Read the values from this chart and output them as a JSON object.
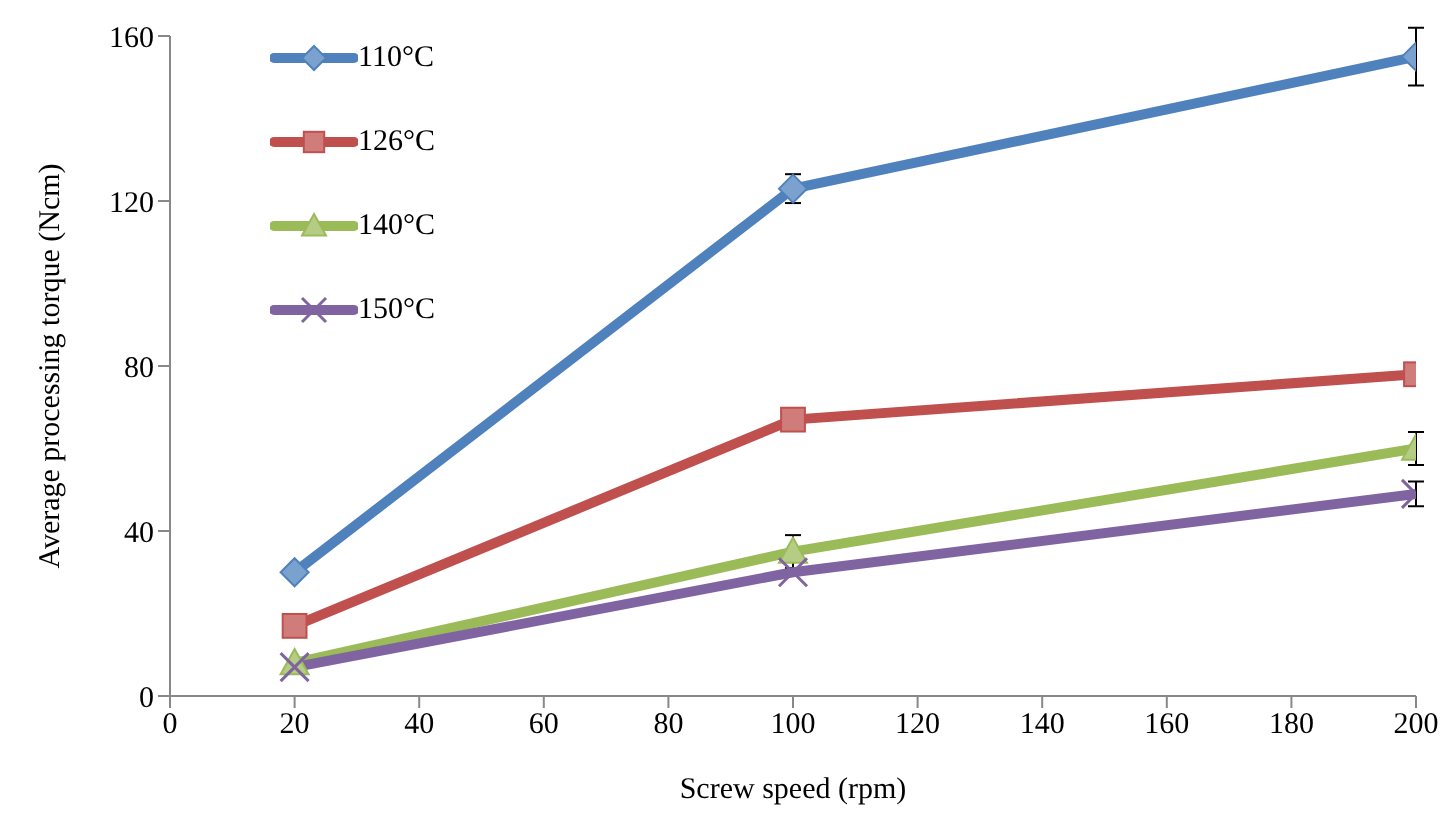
{
  "chart_data": {
    "type": "line",
    "xlabel": "Screw speed (rpm)",
    "ylabel": "Average processing torque (Ncm)",
    "x": [
      20,
      100,
      200
    ],
    "xlim": [
      0,
      200
    ],
    "xticks": [
      0,
      20,
      40,
      60,
      80,
      100,
      120,
      140,
      160,
      180,
      200
    ],
    "ylim": [
      0,
      160
    ],
    "yticks": [
      0,
      40,
      80,
      120,
      160
    ],
    "grid": false,
    "legend": "top left",
    "series": [
      {
        "name": "110°C",
        "color": "#4f81bd",
        "marker": "diamond",
        "values": [
          30,
          123,
          155
        ],
        "errors": [
          null,
          3.5,
          7
        ]
      },
      {
        "name": "126°C",
        "color": "#c0504d",
        "marker": "square",
        "values": [
          17,
          67,
          78
        ]
      },
      {
        "name": "140°C",
        "color": "#9bbb59",
        "marker": "triangle",
        "values": [
          8,
          35,
          60
        ],
        "errors": [
          null,
          4,
          4
        ]
      },
      {
        "name": "150°C",
        "color": "#8064a2",
        "marker": "cross",
        "values": [
          7,
          30,
          49
        ],
        "errors": [
          null,
          null,
          3
        ]
      }
    ]
  }
}
